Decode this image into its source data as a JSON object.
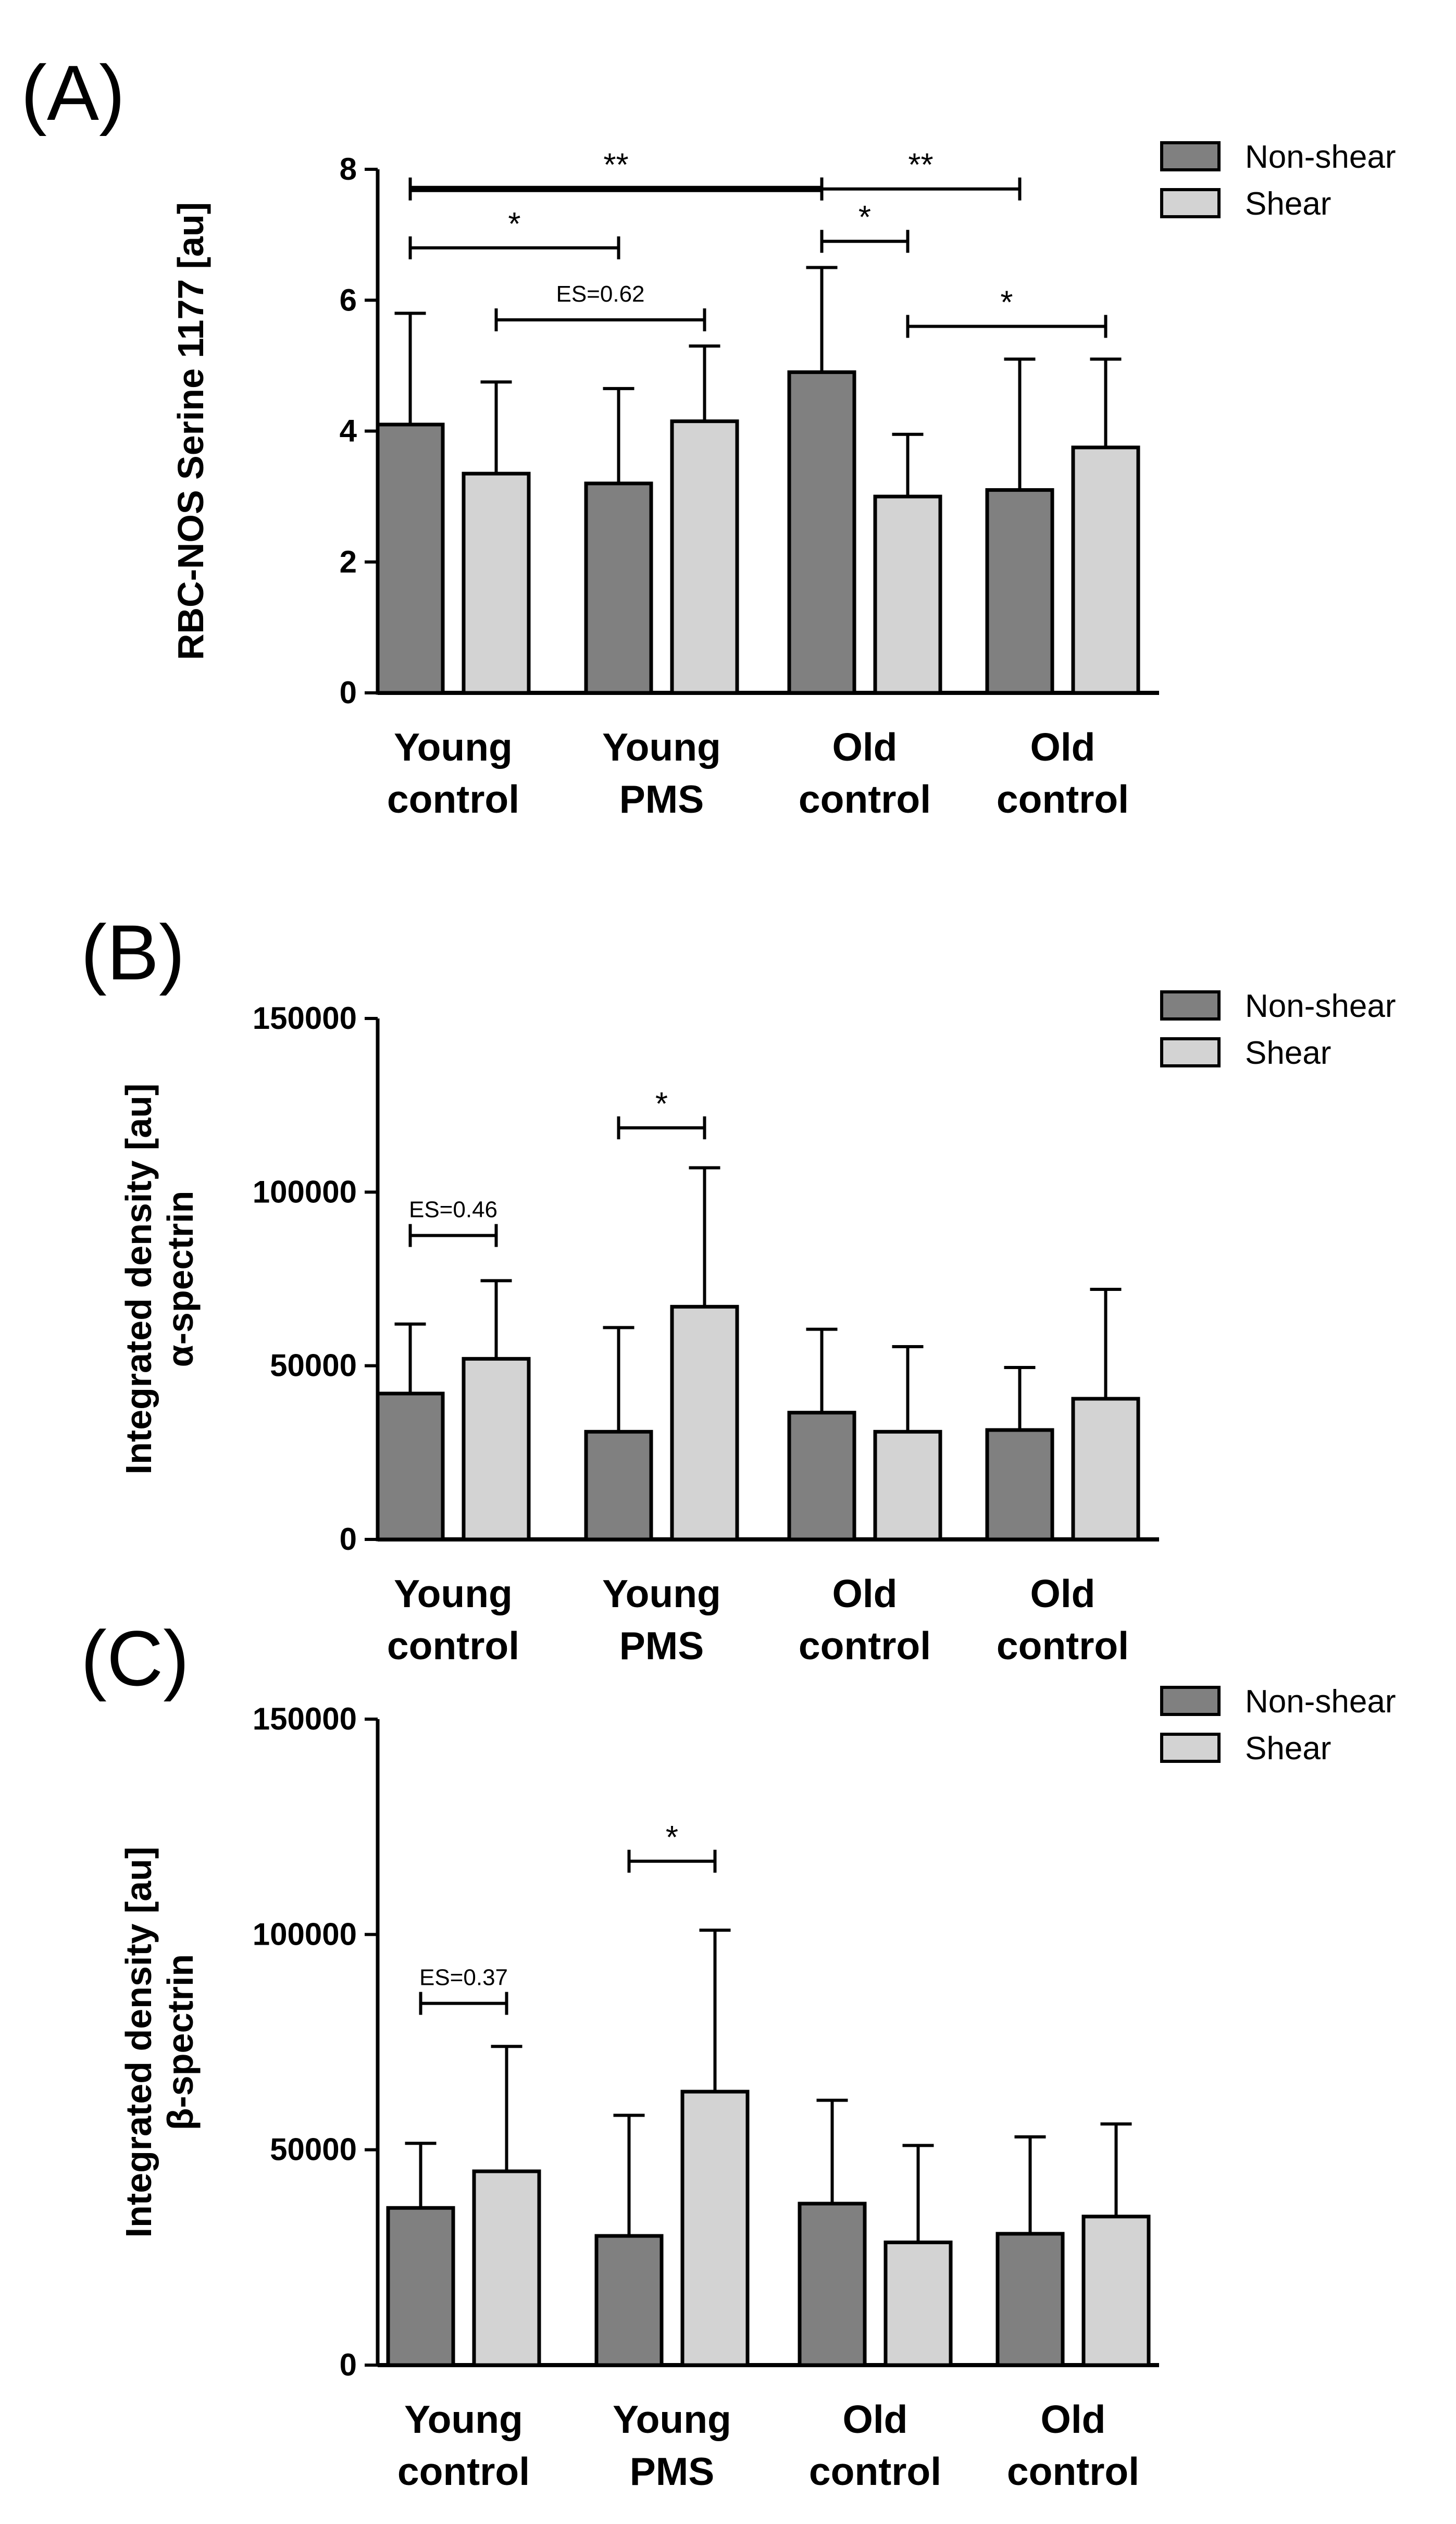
{
  "chart_data": [
    {
      "type": "bar",
      "panel_label": "(A)",
      "ylabel": "RBC-NOS Serine 1177 [au]",
      "ylim": [
        0,
        8
      ],
      "yticks": [
        "0",
        "2",
        "4",
        "6",
        "8"
      ],
      "categories": [
        [
          "Young",
          "control"
        ],
        [
          "Young",
          "PMS"
        ],
        [
          "Old",
          "control"
        ],
        [
          "Old",
          "control"
        ]
      ],
      "legend": {
        "position": "top-right",
        "entries": [
          "Non-shear",
          "Shear"
        ]
      },
      "colors": {
        "Non-shear": "#808080",
        "Shear": "#d3d3d3"
      },
      "series": [
        {
          "name": "Non-shear",
          "values": [
            4.1,
            3.2,
            4.9,
            3.1
          ],
          "error": [
            1.7,
            1.45,
            1.6,
            2.0
          ]
        },
        {
          "name": "Shear",
          "values": [
            3.35,
            4.15,
            3.0,
            3.75
          ],
          "error": [
            1.4,
            1.15,
            0.95,
            1.35
          ]
        }
      ],
      "comparisons": [
        {
          "label": "**",
          "from": [
            0,
            0
          ],
          "to": [
            2,
            0
          ],
          "y": 7.7,
          "bold": true
        },
        {
          "label": "*",
          "from": [
            0,
            0
          ],
          "to": [
            1,
            0
          ],
          "y": 6.8
        },
        {
          "label": "ES=0.62",
          "from": [
            0,
            1
          ],
          "to": [
            1,
            1
          ],
          "y": 5.7,
          "small": true
        },
        {
          "label": "**",
          "from": [
            2,
            0
          ],
          "to": [
            3,
            0
          ],
          "y": 7.7
        },
        {
          "label": "*",
          "from": [
            2,
            0
          ],
          "to": [
            2,
            1
          ],
          "y": 6.9
        },
        {
          "label": "*",
          "from": [
            2,
            1
          ],
          "to": [
            3,
            1
          ],
          "y": 5.6
        }
      ]
    },
    {
      "type": "bar",
      "panel_label": "(B)",
      "ylabel": [
        "Integrated density [au]",
        "α-spectrin"
      ],
      "ylim": [
        0,
        150000
      ],
      "yticks": [
        "0",
        "50000",
        "100000",
        "150000"
      ],
      "categories": [
        [
          "Young",
          "control"
        ],
        [
          "Young",
          "PMS"
        ],
        [
          "Old",
          "control"
        ],
        [
          "Old",
          "control"
        ]
      ],
      "legend": {
        "position": "top-right",
        "entries": [
          "Non-shear",
          "Shear"
        ]
      },
      "colors": {
        "Non-shear": "#808080",
        "Shear": "#d3d3d3"
      },
      "series": [
        {
          "name": "Non-shear",
          "values": [
            42000,
            31000,
            36500,
            31500
          ],
          "error": [
            20000,
            30000,
            24000,
            18000
          ]
        },
        {
          "name": "Shear",
          "values": [
            52000,
            67000,
            31000,
            40500
          ],
          "error": [
            22500,
            40000,
            24500,
            31500
          ]
        }
      ],
      "comparisons": [
        {
          "label": "ES=0.46",
          "from": [
            0,
            0
          ],
          "to": [
            0,
            1
          ],
          "y": 87500,
          "small": true
        },
        {
          "label": "*",
          "from": [
            1,
            0
          ],
          "to": [
            1,
            1
          ],
          "y": 118500
        }
      ]
    },
    {
      "type": "bar",
      "panel_label": "(C)",
      "ylabel": [
        "Integrated density [au]",
        "β-spectrin"
      ],
      "ylim": [
        0,
        150000
      ],
      "yticks": [
        "0",
        "50000",
        "100000",
        "150000"
      ],
      "categories": [
        [
          "Young",
          "control"
        ],
        [
          "Young",
          "PMS"
        ],
        [
          "Old",
          "control"
        ],
        [
          "Old",
          "control"
        ]
      ],
      "legend": {
        "position": "top-right",
        "entries": [
          "Non-shear",
          "Shear"
        ]
      },
      "colors": {
        "Non-shear": "#808080",
        "Shear": "#d3d3d3"
      },
      "series": [
        {
          "name": "Non-shear",
          "values": [
            36500,
            30000,
            37500,
            30500
          ],
          "error": [
            15000,
            28000,
            24000,
            22500
          ]
        },
        {
          "name": "Shear",
          "values": [
            45000,
            63500,
            28500,
            34500
          ],
          "error": [
            29000,
            37500,
            22500,
            21500
          ]
        }
      ],
      "comparisons": [
        {
          "label": "ES=0.37",
          "from": [
            0,
            0
          ],
          "to": [
            0,
            1
          ],
          "y": 84000,
          "small": true
        },
        {
          "label": "*",
          "from": [
            1,
            0
          ],
          "to": [
            1,
            1
          ],
          "y": 117000
        }
      ]
    }
  ]
}
